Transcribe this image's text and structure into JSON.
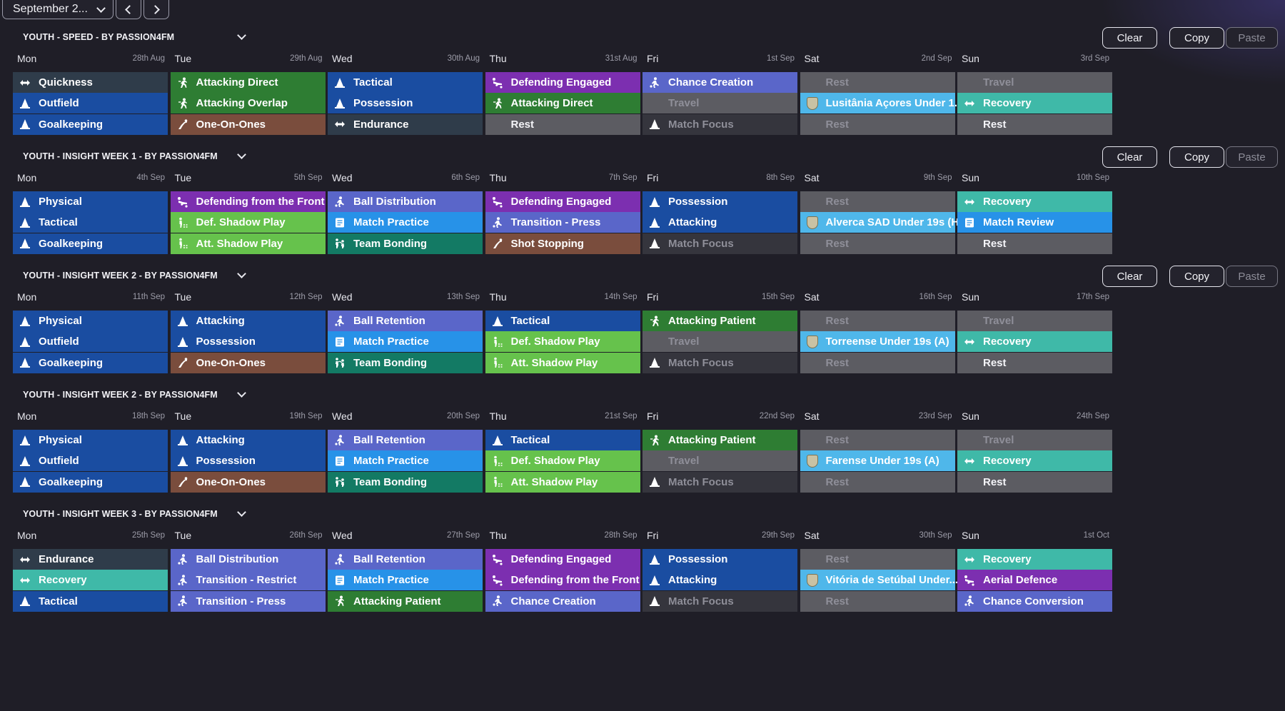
{
  "month_selector": {
    "label": "September 2...",
    "prev_icon": "chevron-left-icon",
    "next_icon": "chevron-right-icon"
  },
  "buttons": {
    "clear": "Clear",
    "copy": "Copy",
    "paste": "Paste"
  },
  "colors": {
    "blue": "#1a4da1",
    "slate": "#2f3c4a",
    "green": "#2e7d33",
    "lightgreen": "#66c24c",
    "brown": "#7a4d3d",
    "purple": "#7c2fb0",
    "periwinkle": "#5a66c9",
    "sky": "#2792e8",
    "teal": "#137a64",
    "aqua": "#3fb9a8",
    "gray": "#5c5c62",
    "darkgray": "#35353d",
    "lightblue": "#4fb7ea"
  },
  "weeks": [
    {
      "title": "YOUTH - SPEED - BY PASSION4FM",
      "show_actions": true,
      "days": [
        {
          "name": "Mon",
          "date": "28th Aug",
          "sessions": [
            {
              "label": "Quickness",
              "color": "slate",
              "icon": "arrows"
            },
            {
              "label": "Outfield",
              "color": "blue",
              "icon": "cone"
            },
            {
              "label": "Goalkeeping",
              "color": "blue",
              "icon": "cone"
            }
          ]
        },
        {
          "name": "Tue",
          "date": "29th Aug",
          "sessions": [
            {
              "label": "Attacking Direct",
              "color": "green",
              "icon": "runner"
            },
            {
              "label": "Attacking Overlap",
              "color": "green",
              "icon": "runner"
            },
            {
              "label": "One-On-Ones",
              "color": "brown",
              "icon": "dive"
            }
          ]
        },
        {
          "name": "Wed",
          "date": "30th Aug",
          "sessions": [
            {
              "label": "Tactical",
              "color": "blue",
              "icon": "cone"
            },
            {
              "label": "Possession",
              "color": "blue",
              "icon": "cone"
            },
            {
              "label": "Endurance",
              "color": "slate",
              "icon": "arrows"
            }
          ]
        },
        {
          "name": "Thu",
          "date": "31st Aug",
          "sessions": [
            {
              "label": "Defending Engaged",
              "color": "purple",
              "icon": "tackle"
            },
            {
              "label": "Attacking Direct",
              "color": "green",
              "icon": "runner"
            },
            {
              "label": "Rest",
              "color": "gray",
              "icon": "none",
              "style": "rest"
            }
          ]
        },
        {
          "name": "Fri",
          "date": "1st Sep",
          "sessions": [
            {
              "label": "Chance Creation",
              "color": "periwinkle",
              "icon": "kick"
            },
            {
              "label": "Travel",
              "color": "gray",
              "icon": "none",
              "style": "dim"
            },
            {
              "label": "Match Focus",
              "color": "darkgray",
              "icon": "cone",
              "style": "dim"
            }
          ]
        },
        {
          "name": "Sat",
          "date": "2nd Sep",
          "sessions": [
            {
              "label": "Rest",
              "color": "gray",
              "icon": "none",
              "style": "dim"
            },
            {
              "label": "Lusitânia Açores Under 1...",
              "color": "lightblue",
              "icon": "crest"
            },
            {
              "label": "Rest",
              "color": "gray",
              "icon": "none",
              "style": "dim"
            }
          ]
        },
        {
          "name": "Sun",
          "date": "3rd Sep",
          "sessions": [
            {
              "label": "Travel",
              "color": "gray",
              "icon": "none",
              "style": "dim"
            },
            {
              "label": "Recovery",
              "color": "aqua",
              "icon": "arrows"
            },
            {
              "label": "Rest",
              "color": "gray",
              "icon": "none",
              "style": "rest"
            }
          ]
        }
      ]
    },
    {
      "title": "YOUTH - INSIGHT WEEK 1 - BY PASSION4FM",
      "show_actions": true,
      "days": [
        {
          "name": "Mon",
          "date": "4th Sep",
          "sessions": [
            {
              "label": "Physical",
              "color": "blue",
              "icon": "cone"
            },
            {
              "label": "Tactical",
              "color": "blue",
              "icon": "cone"
            },
            {
              "label": "Goalkeeping",
              "color": "blue",
              "icon": "cone"
            }
          ]
        },
        {
          "name": "Tue",
          "date": "5th Sep",
          "sessions": [
            {
              "label": "Defending from the Front",
              "color": "purple",
              "icon": "tackle"
            },
            {
              "label": "Def. Shadow Play",
              "color": "lightgreen",
              "icon": "shadow"
            },
            {
              "label": "Att. Shadow Play",
              "color": "lightgreen",
              "icon": "shadow"
            }
          ]
        },
        {
          "name": "Wed",
          "date": "6th Sep",
          "sessions": [
            {
              "label": "Ball Distribution",
              "color": "periwinkle",
              "icon": "kick"
            },
            {
              "label": "Match Practice",
              "color": "sky",
              "icon": "board"
            },
            {
              "label": "Team Bonding",
              "color": "teal",
              "icon": "bond"
            }
          ]
        },
        {
          "name": "Thu",
          "date": "7th Sep",
          "sessions": [
            {
              "label": "Defending Engaged",
              "color": "purple",
              "icon": "tackle"
            },
            {
              "label": "Transition - Press",
              "color": "periwinkle",
              "icon": "kick"
            },
            {
              "label": "Shot Stopping",
              "color": "brown",
              "icon": "dive"
            }
          ]
        },
        {
          "name": "Fri",
          "date": "8th Sep",
          "sessions": [
            {
              "label": "Possession",
              "color": "blue",
              "icon": "cone"
            },
            {
              "label": "Attacking",
              "color": "blue",
              "icon": "cone"
            },
            {
              "label": "Match Focus",
              "color": "darkgray",
              "icon": "cone",
              "style": "dim"
            }
          ]
        },
        {
          "name": "Sat",
          "date": "9th Sep",
          "sessions": [
            {
              "label": "Rest",
              "color": "gray",
              "icon": "none",
              "style": "dim"
            },
            {
              "label": "Alverca SAD Under 19s (H)",
              "color": "lightblue",
              "icon": "crest"
            },
            {
              "label": "Rest",
              "color": "gray",
              "icon": "none",
              "style": "dim"
            }
          ]
        },
        {
          "name": "Sun",
          "date": "10th Sep",
          "sessions": [
            {
              "label": "Recovery",
              "color": "aqua",
              "icon": "arrows"
            },
            {
              "label": "Match Review",
              "color": "sky",
              "icon": "board"
            },
            {
              "label": "Rest",
              "color": "gray",
              "icon": "none",
              "style": "rest"
            }
          ]
        }
      ]
    },
    {
      "title": "YOUTH - INSIGHT WEEK 2 - BY PASSION4FM",
      "show_actions": true,
      "days": [
        {
          "name": "Mon",
          "date": "11th Sep",
          "sessions": [
            {
              "label": "Physical",
              "color": "blue",
              "icon": "cone"
            },
            {
              "label": "Outfield",
              "color": "blue",
              "icon": "cone"
            },
            {
              "label": "Goalkeeping",
              "color": "blue",
              "icon": "cone"
            }
          ]
        },
        {
          "name": "Tue",
          "date": "12th Sep",
          "sessions": [
            {
              "label": "Attacking",
              "color": "blue",
              "icon": "cone"
            },
            {
              "label": "Possession",
              "color": "blue",
              "icon": "cone"
            },
            {
              "label": "One-On-Ones",
              "color": "brown",
              "icon": "dive"
            }
          ]
        },
        {
          "name": "Wed",
          "date": "13th Sep",
          "sessions": [
            {
              "label": "Ball Retention",
              "color": "periwinkle",
              "icon": "kick"
            },
            {
              "label": "Match Practice",
              "color": "sky",
              "icon": "board"
            },
            {
              "label": "Team Bonding",
              "color": "teal",
              "icon": "bond"
            }
          ]
        },
        {
          "name": "Thu",
          "date": "14th Sep",
          "sessions": [
            {
              "label": "Tactical",
              "color": "blue",
              "icon": "cone"
            },
            {
              "label": "Def. Shadow Play",
              "color": "lightgreen",
              "icon": "shadow"
            },
            {
              "label": "Att. Shadow Play",
              "color": "lightgreen",
              "icon": "shadow"
            }
          ]
        },
        {
          "name": "Fri",
          "date": "15th Sep",
          "sessions": [
            {
              "label": "Attacking Patient",
              "color": "green",
              "icon": "runner"
            },
            {
              "label": "Travel",
              "color": "gray",
              "icon": "none",
              "style": "dim"
            },
            {
              "label": "Match Focus",
              "color": "darkgray",
              "icon": "cone",
              "style": "dim"
            }
          ]
        },
        {
          "name": "Sat",
          "date": "16th Sep",
          "sessions": [
            {
              "label": "Rest",
              "color": "gray",
              "icon": "none",
              "style": "dim"
            },
            {
              "label": "Torreense Under 19s (A)",
              "color": "lightblue",
              "icon": "crest"
            },
            {
              "label": "Rest",
              "color": "gray",
              "icon": "none",
              "style": "dim"
            }
          ]
        },
        {
          "name": "Sun",
          "date": "17th Sep",
          "sessions": [
            {
              "label": "Travel",
              "color": "gray",
              "icon": "none",
              "style": "dim"
            },
            {
              "label": "Recovery",
              "color": "aqua",
              "icon": "arrows"
            },
            {
              "label": "Rest",
              "color": "gray",
              "icon": "none",
              "style": "rest"
            }
          ]
        }
      ]
    },
    {
      "title": "YOUTH - INSIGHT WEEK 2 - BY PASSION4FM",
      "show_actions": false,
      "days": [
        {
          "name": "Mon",
          "date": "18th Sep",
          "sessions": [
            {
              "label": "Physical",
              "color": "blue",
              "icon": "cone"
            },
            {
              "label": "Outfield",
              "color": "blue",
              "icon": "cone"
            },
            {
              "label": "Goalkeeping",
              "color": "blue",
              "icon": "cone"
            }
          ]
        },
        {
          "name": "Tue",
          "date": "19th Sep",
          "sessions": [
            {
              "label": "Attacking",
              "color": "blue",
              "icon": "cone"
            },
            {
              "label": "Possession",
              "color": "blue",
              "icon": "cone"
            },
            {
              "label": "One-On-Ones",
              "color": "brown",
              "icon": "dive"
            }
          ]
        },
        {
          "name": "Wed",
          "date": "20th Sep",
          "sessions": [
            {
              "label": "Ball Retention",
              "color": "periwinkle",
              "icon": "kick"
            },
            {
              "label": "Match Practice",
              "color": "sky",
              "icon": "board"
            },
            {
              "label": "Team Bonding",
              "color": "teal",
              "icon": "bond"
            }
          ]
        },
        {
          "name": "Thu",
          "date": "21st Sep",
          "sessions": [
            {
              "label": "Tactical",
              "color": "blue",
              "icon": "cone"
            },
            {
              "label": "Def. Shadow Play",
              "color": "lightgreen",
              "icon": "shadow"
            },
            {
              "label": "Att. Shadow Play",
              "color": "lightgreen",
              "icon": "shadow"
            }
          ]
        },
        {
          "name": "Fri",
          "date": "22nd Sep",
          "sessions": [
            {
              "label": "Attacking Patient",
              "color": "green",
              "icon": "runner"
            },
            {
              "label": "Travel",
              "color": "gray",
              "icon": "none",
              "style": "dim"
            },
            {
              "label": "Match Focus",
              "color": "darkgray",
              "icon": "cone",
              "style": "dim"
            }
          ]
        },
        {
          "name": "Sat",
          "date": "23rd Sep",
          "sessions": [
            {
              "label": "Rest",
              "color": "gray",
              "icon": "none",
              "style": "dim"
            },
            {
              "label": "Farense Under 19s (A)",
              "color": "lightblue",
              "icon": "crest"
            },
            {
              "label": "Rest",
              "color": "gray",
              "icon": "none",
              "style": "dim"
            }
          ]
        },
        {
          "name": "Sun",
          "date": "24th Sep",
          "sessions": [
            {
              "label": "Travel",
              "color": "gray",
              "icon": "none",
              "style": "dim"
            },
            {
              "label": "Recovery",
              "color": "aqua",
              "icon": "arrows"
            },
            {
              "label": "Rest",
              "color": "gray",
              "icon": "none",
              "style": "rest"
            }
          ]
        }
      ]
    },
    {
      "title": "YOUTH - INSIGHT WEEK 3 - BY PASSION4FM",
      "show_actions": false,
      "days": [
        {
          "name": "Mon",
          "date": "25th Sep",
          "sessions": [
            {
              "label": "Endurance",
              "color": "slate",
              "icon": "arrows"
            },
            {
              "label": "Recovery",
              "color": "aqua",
              "icon": "arrows"
            },
            {
              "label": "Tactical",
              "color": "blue",
              "icon": "cone"
            }
          ]
        },
        {
          "name": "Tue",
          "date": "26th Sep",
          "sessions": [
            {
              "label": "Ball Distribution",
              "color": "periwinkle",
              "icon": "kick"
            },
            {
              "label": "Transition - Restrict",
              "color": "periwinkle",
              "icon": "kick"
            },
            {
              "label": "Transition - Press",
              "color": "periwinkle",
              "icon": "kick"
            }
          ]
        },
        {
          "name": "Wed",
          "date": "27th Sep",
          "sessions": [
            {
              "label": "Ball Retention",
              "color": "periwinkle",
              "icon": "kick"
            },
            {
              "label": "Match Practice",
              "color": "sky",
              "icon": "board"
            },
            {
              "label": "Attacking Patient",
              "color": "green",
              "icon": "runner"
            }
          ]
        },
        {
          "name": "Thu",
          "date": "28th Sep",
          "sessions": [
            {
              "label": "Defending Engaged",
              "color": "purple",
              "icon": "tackle"
            },
            {
              "label": "Defending from the Front",
              "color": "purple",
              "icon": "tackle"
            },
            {
              "label": "Chance Creation",
              "color": "periwinkle",
              "icon": "kick"
            }
          ]
        },
        {
          "name": "Fri",
          "date": "29th Sep",
          "sessions": [
            {
              "label": "Possession",
              "color": "blue",
              "icon": "cone"
            },
            {
              "label": "Attacking",
              "color": "blue",
              "icon": "cone"
            },
            {
              "label": "Match Focus",
              "color": "darkgray",
              "icon": "cone",
              "style": "dim"
            }
          ]
        },
        {
          "name": "Sat",
          "date": "30th Sep",
          "sessions": [
            {
              "label": "Rest",
              "color": "gray",
              "icon": "none",
              "style": "dim"
            },
            {
              "label": "Vitória de Setúbal Under...",
              "color": "lightblue",
              "icon": "crest"
            },
            {
              "label": "Rest",
              "color": "gray",
              "icon": "none",
              "style": "dim"
            }
          ]
        },
        {
          "name": "Sun",
          "date": "1st Oct",
          "sessions": [
            {
              "label": "Recovery",
              "color": "aqua",
              "icon": "arrows"
            },
            {
              "label": "Aerial Defence",
              "color": "purple",
              "icon": "tackle"
            },
            {
              "label": "Chance Conversion",
              "color": "periwinkle",
              "icon": "kick"
            }
          ]
        }
      ]
    }
  ]
}
